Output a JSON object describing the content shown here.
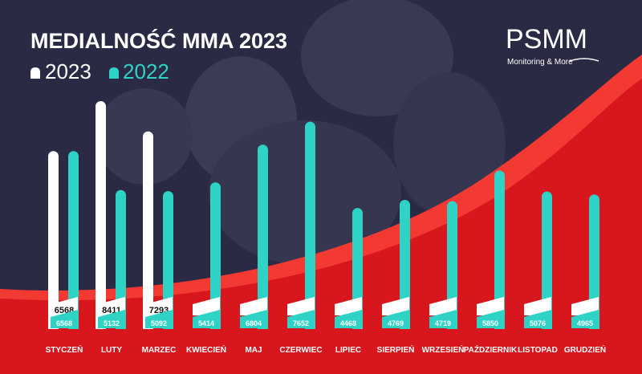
{
  "header": {
    "title": "MEDIALNOŚĆ MMA 2023",
    "logo_text": "PSMM",
    "logo_sub": "Monitoring & More"
  },
  "legend": [
    {
      "label": "2023",
      "color": "#ffffff"
    },
    {
      "label": "2022",
      "color": "#2ed3c6"
    }
  ],
  "colors": {
    "background": "#2b2a44",
    "red_band": "#d8161e",
    "red_stripe": "#f23a32",
    "bar_2023": "#ffffff",
    "bar_2022": "#2ed3c6"
  },
  "chart_data": {
    "type": "bar",
    "title": "MEDIALNOŚĆ MMA 2023",
    "categories": [
      "STYCZEŃ",
      "LUTY",
      "MARZEC",
      "KWIECIEŃ",
      "MAJ",
      "CZERWIEC",
      "LIPIEC",
      "SIERPIEŃ",
      "WRZESIEŃ",
      "PAŹDZIERNIK",
      "LISTOPAD",
      "GRUDZIEŃ"
    ],
    "series": [
      {
        "name": "2023",
        "values": [
          6568,
          8411,
          7293,
          null,
          null,
          null,
          null,
          null,
          null,
          null,
          null,
          null
        ]
      },
      {
        "name": "2022",
        "values": [
          6568,
          5132,
          5092,
          5414,
          6804,
          7652,
          4468,
          4769,
          4719,
          5850,
          5076,
          4965
        ]
      }
    ],
    "legend_position": "top-left",
    "grid": false
  }
}
